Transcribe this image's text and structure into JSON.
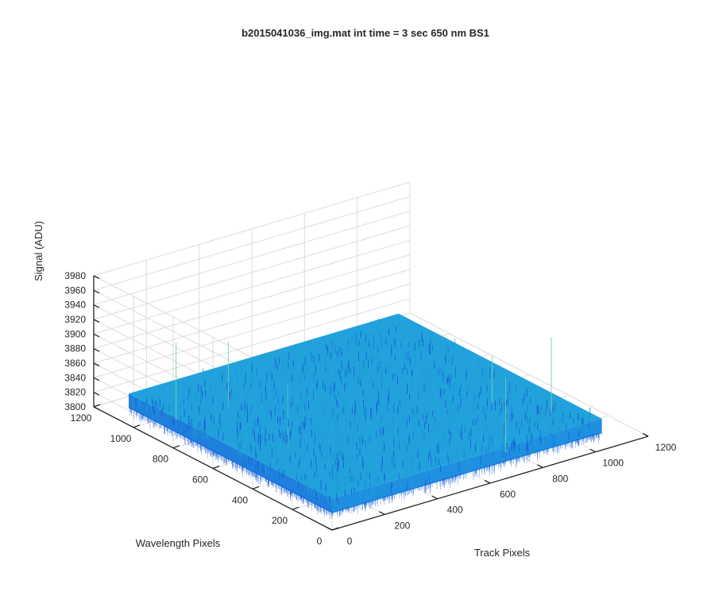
{
  "chart_data": {
    "type": "surface",
    "title": "b2015041036_img.mat int time = 3 sec  650 nm BS1",
    "xlabel": "Track Pixels",
    "ylabel": "Wavelength Pixels",
    "zlabel": "Signal (ADU)",
    "xlim": [
      0,
      1200
    ],
    "ylim": [
      0,
      1200
    ],
    "zlim": [
      3800,
      3980
    ],
    "xticks": [
      "0",
      "200",
      "400",
      "600",
      "800",
      "1000",
      "1200"
    ],
    "yticks": [
      "0",
      "200",
      "400",
      "600",
      "800",
      "1000",
      "1200"
    ],
    "zticks": [
      "3800",
      "3820",
      "3840",
      "3860",
      "3880",
      "3900",
      "3920",
      "3940",
      "3960",
      "3980"
    ],
    "x_extent": [
      0,
      1024
    ],
    "y_extent": [
      0,
      1024
    ],
    "signal_mean": 3835,
    "signal_noise_range": [
      3820,
      3870
    ],
    "signal_max_spike": 3945,
    "grid": true,
    "colormap": "parula",
    "colors": {
      "low": "#1a5fd8",
      "mid": "#1f9ed6",
      "high": "#7fd0a0"
    }
  }
}
